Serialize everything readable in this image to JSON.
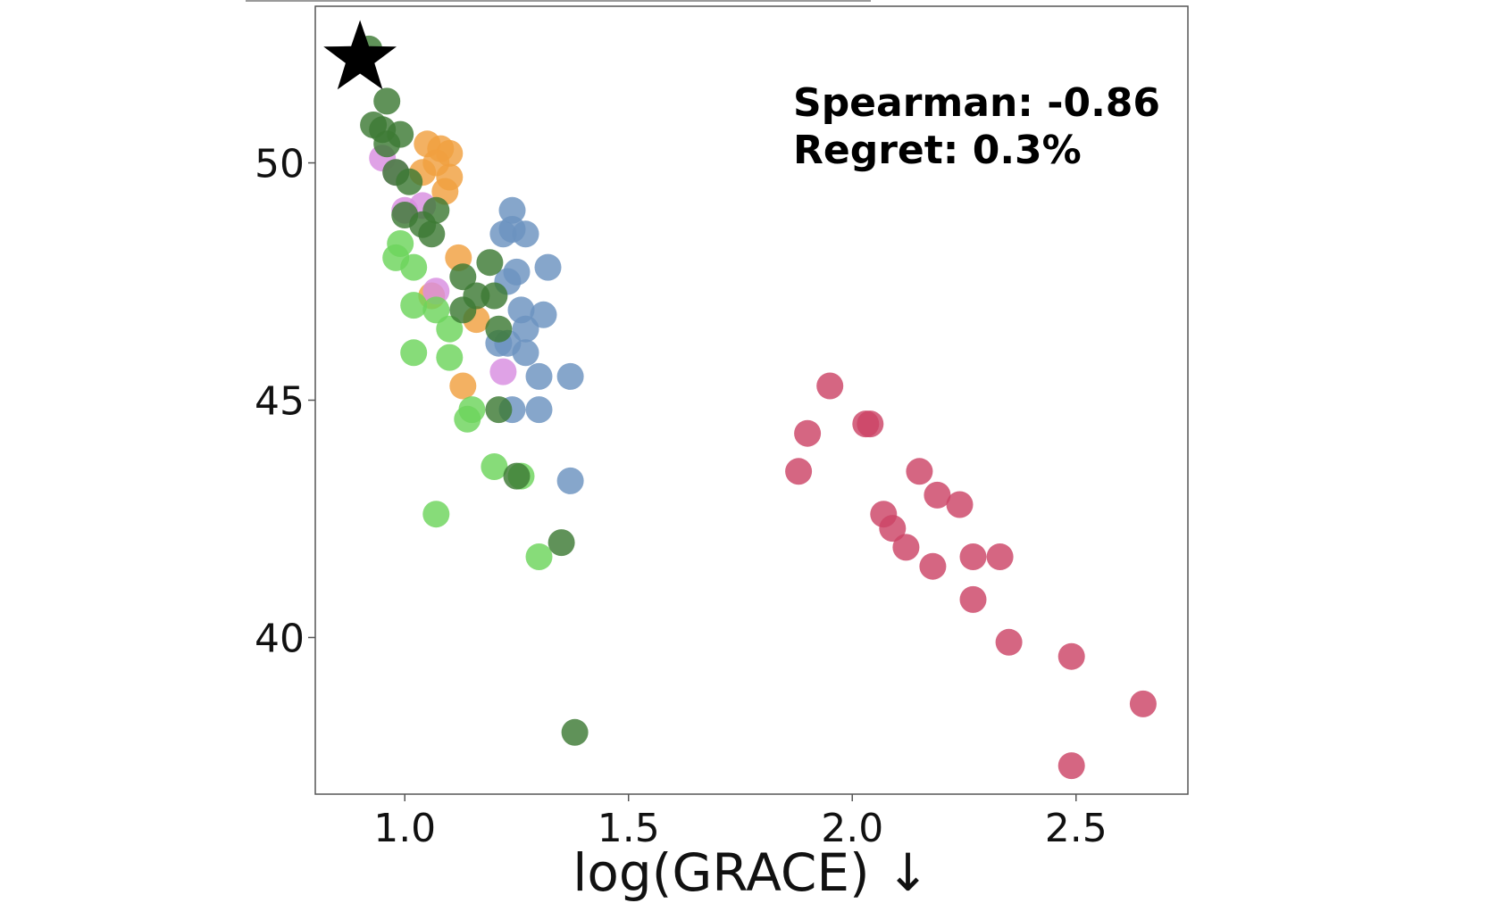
{
  "chart_data": {
    "type": "scatter",
    "xlabel": "log(GRACE) ↓",
    "ylabel": "",
    "xlim": [
      0.8,
      2.75
    ],
    "ylim": [
      36.7,
      53.3
    ],
    "xticks": [
      1.0,
      1.5,
      2.0,
      2.5
    ],
    "xtick_labels": [
      "1.0",
      "1.5",
      "2.0",
      "2.5"
    ],
    "yticks": [
      40,
      45,
      50
    ],
    "ytick_labels": [
      "40",
      "45",
      "50"
    ],
    "grid": false,
    "annotations": [
      "Spearman: -0.86",
      "Regret: 0.3%"
    ],
    "star": {
      "x": 0.9,
      "y": 52.2,
      "color": "#000000"
    },
    "series": [
      {
        "color": "#cc4466",
        "points": [
          [
            1.95,
            45.3
          ],
          [
            2.03,
            44.5
          ],
          [
            2.04,
            44.5
          ],
          [
            1.9,
            44.3
          ],
          [
            1.88,
            43.5
          ],
          [
            2.15,
            43.5
          ],
          [
            2.19,
            43.0
          ],
          [
            2.24,
            42.8
          ],
          [
            2.07,
            42.6
          ],
          [
            2.09,
            42.3
          ],
          [
            2.12,
            41.9
          ],
          [
            2.27,
            41.7
          ],
          [
            2.33,
            41.7
          ],
          [
            2.18,
            41.5
          ],
          [
            2.27,
            40.8
          ],
          [
            2.35,
            39.9
          ],
          [
            2.49,
            39.6
          ],
          [
            2.65,
            38.6
          ],
          [
            2.49,
            37.3
          ]
        ]
      },
      {
        "color": "#6b93bf",
        "points": [
          [
            1.24,
            49.0
          ],
          [
            1.24,
            48.6
          ],
          [
            1.22,
            48.5
          ],
          [
            1.27,
            48.5
          ],
          [
            1.32,
            47.8
          ],
          [
            1.25,
            47.7
          ],
          [
            1.23,
            47.5
          ],
          [
            1.26,
            46.9
          ],
          [
            1.31,
            46.8
          ],
          [
            1.27,
            46.5
          ],
          [
            1.21,
            46.2
          ],
          [
            1.23,
            46.2
          ],
          [
            1.27,
            46.0
          ],
          [
            1.3,
            45.5
          ],
          [
            1.37,
            45.5
          ],
          [
            1.24,
            44.8
          ],
          [
            1.3,
            44.8
          ],
          [
            1.37,
            43.3
          ]
        ]
      },
      {
        "color": "#f0a040",
        "points": [
          [
            1.05,
            50.4
          ],
          [
            1.08,
            50.3
          ],
          [
            1.1,
            50.2
          ],
          [
            1.07,
            50.0
          ],
          [
            1.04,
            49.8
          ],
          [
            1.1,
            49.7
          ],
          [
            1.09,
            49.4
          ],
          [
            1.12,
            48.0
          ],
          [
            1.06,
            47.2
          ],
          [
            1.16,
            46.7
          ],
          [
            1.13,
            45.3
          ]
        ]
      },
      {
        "color": "#d88ee0",
        "points": [
          [
            0.95,
            50.1
          ],
          [
            0.98,
            49.8
          ],
          [
            1.0,
            49.0
          ],
          [
            1.04,
            49.1
          ],
          [
            1.07,
            47.3
          ],
          [
            1.22,
            45.6
          ]
        ]
      },
      {
        "color": "#6cd45c",
        "points": [
          [
            0.99,
            48.3
          ],
          [
            0.98,
            48.0
          ],
          [
            1.02,
            47.8
          ],
          [
            1.02,
            47.0
          ],
          [
            1.07,
            46.9
          ],
          [
            1.1,
            46.5
          ],
          [
            1.02,
            46.0
          ],
          [
            1.1,
            45.9
          ],
          [
            1.15,
            44.8
          ],
          [
            1.14,
            44.6
          ],
          [
            1.2,
            43.6
          ],
          [
            1.26,
            43.4
          ],
          [
            1.07,
            42.6
          ],
          [
            1.3,
            41.7
          ]
        ]
      },
      {
        "color": "#3d7a35",
        "points": [
          [
            0.92,
            52.4
          ],
          [
            0.96,
            51.3
          ],
          [
            0.93,
            50.8
          ],
          [
            0.95,
            50.7
          ],
          [
            0.99,
            50.6
          ],
          [
            0.96,
            50.4
          ],
          [
            0.98,
            49.8
          ],
          [
            1.01,
            49.6
          ],
          [
            1.07,
            49.0
          ],
          [
            1.0,
            48.9
          ],
          [
            1.04,
            48.7
          ],
          [
            1.06,
            48.5
          ],
          [
            1.19,
            47.9
          ],
          [
            1.13,
            47.6
          ],
          [
            1.16,
            47.2
          ],
          [
            1.2,
            47.2
          ],
          [
            1.13,
            46.9
          ],
          [
            1.21,
            46.5
          ],
          [
            1.21,
            44.8
          ],
          [
            1.25,
            43.4
          ],
          [
            1.35,
            42.0
          ],
          [
            1.38,
            38.0
          ]
        ]
      }
    ]
  }
}
